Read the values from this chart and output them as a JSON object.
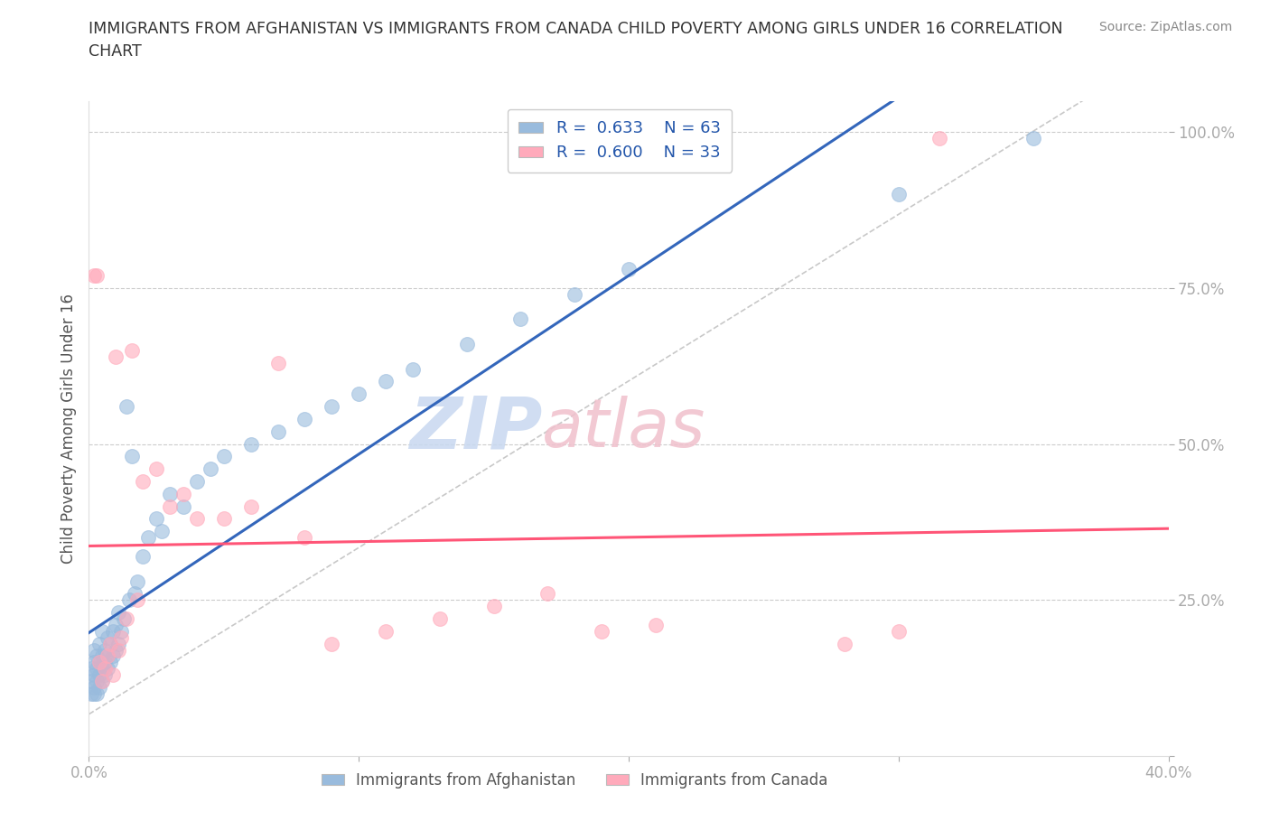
{
  "title": "IMMIGRANTS FROM AFGHANISTAN VS IMMIGRANTS FROM CANADA CHILD POVERTY AMONG GIRLS UNDER 16 CORRELATION\nCHART",
  "source": "Source: ZipAtlas.com",
  "ylabel": "Child Poverty Among Girls Under 16",
  "xlim": [
    0.0,
    0.4
  ],
  "ylim": [
    0.0,
    1.05
  ],
  "blue_color": "#99BBDD",
  "pink_color": "#FFAABB",
  "blue_line_color": "#3366BB",
  "pink_line_color": "#FF5577",
  "diagonal_color": "#BBBBBB",
  "watermark": "ZIPatlas",
  "watermark_blue": "#C8D8F0",
  "watermark_pink": "#F0C0CC",
  "afghanistan_x": [
    0.001,
    0.001,
    0.001,
    0.002,
    0.002,
    0.002,
    0.002,
    0.002,
    0.003,
    0.003,
    0.003,
    0.003,
    0.004,
    0.004,
    0.004,
    0.004,
    0.005,
    0.005,
    0.005,
    0.005,
    0.006,
    0.006,
    0.006,
    0.007,
    0.007,
    0.007,
    0.008,
    0.008,
    0.009,
    0.009,
    0.01,
    0.01,
    0.011,
    0.011,
    0.012,
    0.013,
    0.014,
    0.015,
    0.016,
    0.017,
    0.018,
    0.02,
    0.022,
    0.025,
    0.027,
    0.03,
    0.035,
    0.04,
    0.045,
    0.05,
    0.06,
    0.07,
    0.08,
    0.09,
    0.1,
    0.11,
    0.12,
    0.14,
    0.16,
    0.18,
    0.2,
    0.3,
    0.35
  ],
  "afghanistan_y": [
    0.1,
    0.12,
    0.14,
    0.1,
    0.11,
    0.13,
    0.15,
    0.17,
    0.1,
    0.12,
    0.14,
    0.16,
    0.11,
    0.13,
    0.15,
    0.18,
    0.12,
    0.14,
    0.16,
    0.2,
    0.13,
    0.15,
    0.17,
    0.14,
    0.16,
    0.19,
    0.15,
    0.18,
    0.16,
    0.2,
    0.17,
    0.21,
    0.18,
    0.23,
    0.2,
    0.22,
    0.56,
    0.25,
    0.48,
    0.26,
    0.28,
    0.32,
    0.35,
    0.38,
    0.36,
    0.42,
    0.4,
    0.44,
    0.46,
    0.48,
    0.5,
    0.52,
    0.54,
    0.56,
    0.58,
    0.6,
    0.62,
    0.66,
    0.7,
    0.74,
    0.78,
    0.9,
    0.99
  ],
  "canada_x": [
    0.002,
    0.003,
    0.004,
    0.005,
    0.006,
    0.007,
    0.008,
    0.009,
    0.01,
    0.011,
    0.012,
    0.014,
    0.016,
    0.018,
    0.02,
    0.025,
    0.03,
    0.035,
    0.04,
    0.05,
    0.06,
    0.07,
    0.08,
    0.09,
    0.11,
    0.13,
    0.15,
    0.17,
    0.19,
    0.21,
    0.28,
    0.3,
    0.315
  ],
  "canada_y": [
    0.77,
    0.77,
    0.15,
    0.12,
    0.14,
    0.16,
    0.18,
    0.13,
    0.64,
    0.17,
    0.19,
    0.22,
    0.65,
    0.25,
    0.44,
    0.46,
    0.4,
    0.42,
    0.38,
    0.38,
    0.4,
    0.63,
    0.35,
    0.18,
    0.2,
    0.22,
    0.24,
    0.26,
    0.2,
    0.21,
    0.18,
    0.2,
    0.99
  ],
  "legend_r_blue": "R =  0.633    N = 63",
  "legend_r_pink": "R =  0.600    N = 33",
  "legend_afg": "Immigrants from Afghanistan",
  "legend_can": "Immigrants from Canada"
}
